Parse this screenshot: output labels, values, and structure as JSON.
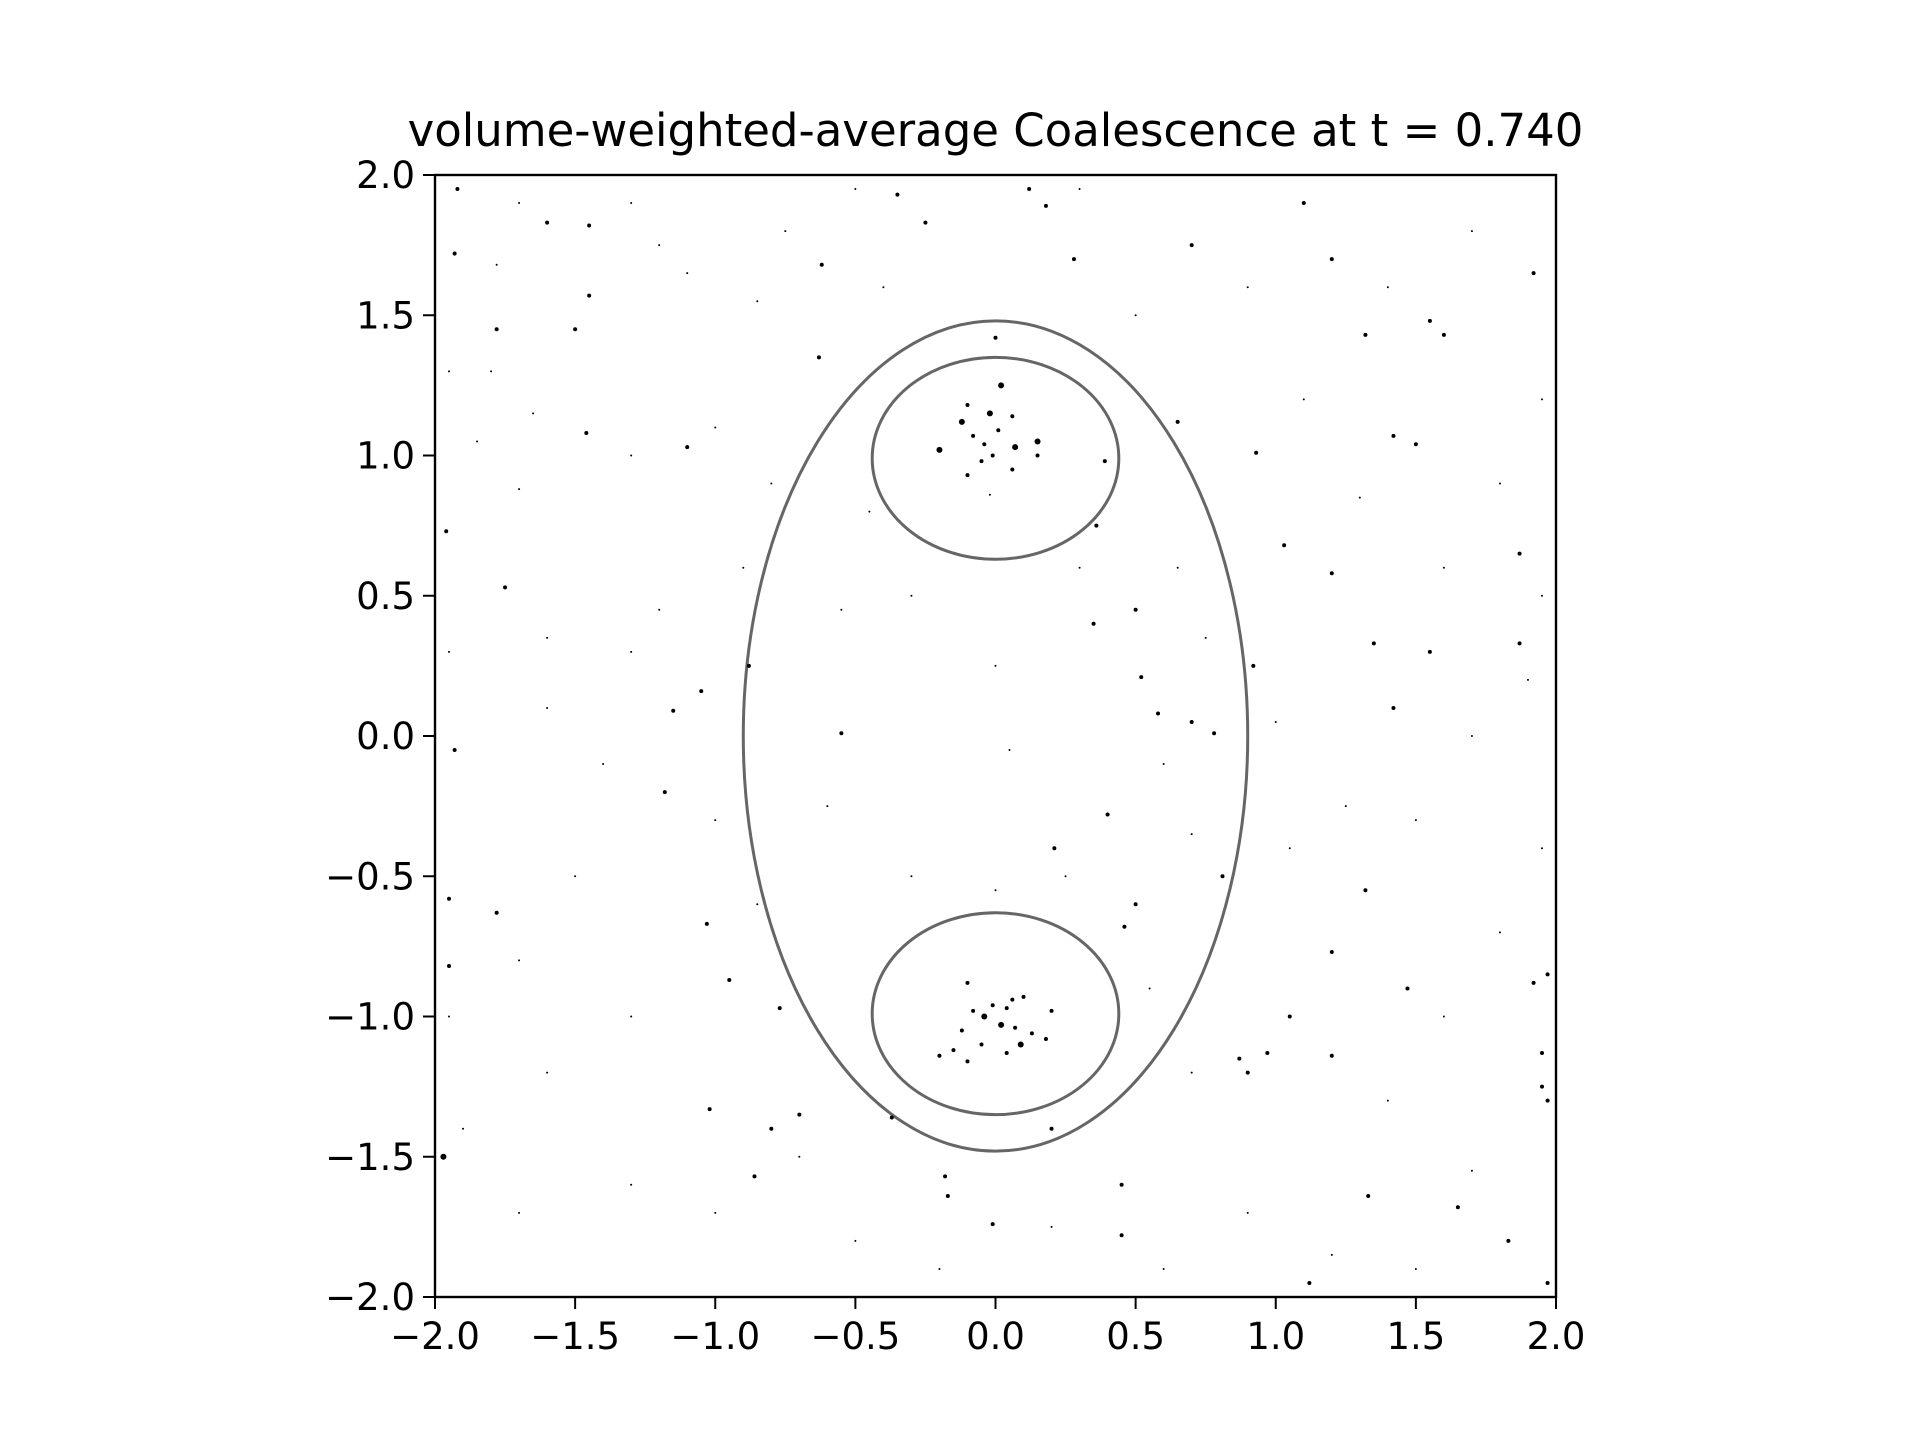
{
  "chart_data": {
    "type": "scatter",
    "title": "volume-weighted-average Coalescence at t = 0.740",
    "xlabel": "",
    "ylabel": "",
    "xlim": [
      -2.0,
      2.0
    ],
    "ylim": [
      -2.0,
      2.0
    ],
    "grid": false,
    "x_ticks": [
      -2.0,
      -1.5,
      -1.0,
      -0.5,
      0.0,
      0.5,
      1.0,
      1.5,
      2.0
    ],
    "y_ticks": [
      -2.0,
      -1.5,
      -1.0,
      -0.5,
      0.0,
      0.5,
      1.0,
      1.5,
      2.0
    ],
    "x_tick_labels": [
      "−2.0",
      "−1.5",
      "−1.0",
      "−0.5",
      "0.0",
      "0.5",
      "1.0",
      "1.5",
      "2.0"
    ],
    "y_tick_labels": [
      "−2.0",
      "−1.5",
      "−1.0",
      "−0.5",
      "0.0",
      "0.5",
      "1.0",
      "1.5",
      "2.0"
    ],
    "outline_color": "#666666",
    "point_color": "#000000",
    "contours": [
      {
        "shape": "ellipse",
        "center": [
          0.0,
          0.0
        ],
        "rx": 0.9,
        "ry": 1.48
      },
      {
        "shape": "ellipse",
        "center": [
          0.0,
          0.99
        ],
        "rx": 0.44,
        "ry": 0.36
      },
      {
        "shape": "ellipse",
        "center": [
          0.0,
          -0.99
        ],
        "rx": 0.44,
        "ry": 0.36
      }
    ],
    "points": [
      [
        -1.92,
        1.95,
        2
      ],
      [
        -1.6,
        1.83,
        2
      ],
      [
        -1.45,
        1.82,
        2
      ],
      [
        -1.93,
        1.72,
        2
      ],
      [
        -1.78,
        1.68,
        1
      ],
      [
        -1.45,
        1.57,
        2
      ],
      [
        -1.5,
        1.45,
        2
      ],
      [
        -1.78,
        1.45,
        2
      ],
      [
        -1.2,
        1.75,
        1
      ],
      [
        -1.1,
        1.65,
        1
      ],
      [
        -0.85,
        1.55,
        1
      ],
      [
        -0.62,
        1.68,
        2
      ],
      [
        -0.63,
        1.35,
        2
      ],
      [
        -1.46,
        1.08,
        2
      ],
      [
        -1.1,
        1.03,
        2
      ],
      [
        -1.85,
        1.05,
        1
      ],
      [
        -1.7,
        0.88,
        1
      ],
      [
        -1.96,
        0.73,
        2
      ],
      [
        -1.75,
        0.53,
        2
      ],
      [
        -1.6,
        0.35,
        1
      ],
      [
        -1.2,
        0.45,
        1
      ],
      [
        -1.05,
        0.16,
        2
      ],
      [
        -1.15,
        0.09,
        2
      ],
      [
        -1.93,
        -0.05,
        2
      ],
      [
        -1.18,
        -0.2,
        2
      ],
      [
        -0.55,
        0.01,
        2
      ],
      [
        -0.88,
        0.25,
        2
      ],
      [
        -1.95,
        -0.58,
        2
      ],
      [
        -1.78,
        -0.63,
        2
      ],
      [
        -1.03,
        -0.67,
        2
      ],
      [
        -0.95,
        -0.87,
        2
      ],
      [
        -0.77,
        -0.97,
        2
      ],
      [
        -1.95,
        -0.82,
        2
      ],
      [
        -1.97,
        -1.5,
        3
      ],
      [
        -1.02,
        -1.33,
        2
      ],
      [
        -0.8,
        -1.4,
        2
      ],
      [
        -0.7,
        -1.35,
        2
      ],
      [
        -0.37,
        -1.36,
        2
      ],
      [
        -0.86,
        -1.57,
        2
      ],
      [
        -0.18,
        -1.57,
        2
      ],
      [
        -0.17,
        -1.64,
        2
      ],
      [
        -0.01,
        -1.74,
        2
      ],
      [
        0.45,
        -1.6,
        2
      ],
      [
        0.45,
        -1.78,
        2
      ],
      [
        0.2,
        -1.4,
        2
      ],
      [
        0.87,
        -1.15,
        2
      ],
      [
        0.9,
        -1.2,
        2
      ],
      [
        0.97,
        -1.13,
        2
      ],
      [
        1.05,
        -1.0,
        2
      ],
      [
        1.2,
        -0.77,
        2
      ],
      [
        1.2,
        -1.14,
        2
      ],
      [
        1.33,
        -1.64,
        2
      ],
      [
        1.47,
        -0.9,
        2
      ],
      [
        1.32,
        -0.55,
        2
      ],
      [
        1.12,
        -1.95,
        2
      ],
      [
        1.65,
        -1.68,
        2
      ],
      [
        1.83,
        -1.8,
        2
      ],
      [
        1.97,
        -1.95,
        2
      ],
      [
        1.92,
        -0.88,
        2
      ],
      [
        1.97,
        -0.85,
        2
      ],
      [
        1.97,
        -1.3,
        2
      ],
      [
        1.95,
        -1.25,
        2
      ],
      [
        1.95,
        -1.13,
        2
      ],
      [
        1.92,
        1.65,
        2
      ],
      [
        1.87,
        0.33,
        2
      ],
      [
        1.87,
        0.65,
        2
      ],
      [
        1.55,
        0.3,
        2
      ],
      [
        1.35,
        0.33,
        2
      ],
      [
        1.2,
        0.58,
        2
      ],
      [
        1.42,
        0.1,
        2
      ],
      [
        1.1,
        1.9,
        2
      ],
      [
        1.2,
        1.7,
        2
      ],
      [
        1.32,
        1.43,
        2
      ],
      [
        1.5,
        1.04,
        2
      ],
      [
        1.42,
        1.07,
        2
      ],
      [
        1.55,
        1.48,
        2
      ],
      [
        1.6,
        1.43,
        2
      ],
      [
        1.03,
        0.68,
        2
      ],
      [
        0.93,
        1.01,
        2
      ],
      [
        0.65,
        1.12,
        2
      ],
      [
        0.39,
        0.98,
        2
      ],
      [
        0.36,
        0.75,
        2
      ],
      [
        0.35,
        0.4,
        2
      ],
      [
        0.5,
        0.45,
        2
      ],
      [
        0.52,
        0.21,
        2
      ],
      [
        0.58,
        0.08,
        2
      ],
      [
        0.7,
        0.05,
        2
      ],
      [
        0.78,
        0.01,
        2
      ],
      [
        0.4,
        -0.28,
        2
      ],
      [
        0.21,
        -0.4,
        2
      ],
      [
        0.92,
        0.25,
        2
      ],
      [
        0.18,
        1.89,
        2
      ],
      [
        -0.25,
        1.83,
        2
      ],
      [
        -0.35,
        1.93,
        2
      ],
      [
        0.12,
        1.95,
        2
      ],
      [
        0.0,
        1.42,
        2
      ],
      [
        0.28,
        1.7,
        2
      ],
      [
        0.7,
        1.75,
        2
      ],
      [
        0.81,
        -0.5,
        2
      ],
      [
        0.5,
        -0.6,
        2
      ],
      [
        0.46,
        -0.68,
        2
      ],
      [
        -0.2,
        1.02,
        3
      ],
      [
        -0.12,
        1.12,
        3
      ],
      [
        -0.02,
        1.15,
        3
      ],
      [
        0.02,
        1.25,
        3
      ],
      [
        0.06,
        1.14,
        2
      ],
      [
        0.15,
        1.05,
        3
      ],
      [
        0.07,
        1.03,
        3
      ],
      [
        -0.04,
        1.04,
        2
      ],
      [
        -0.08,
        1.07,
        2
      ],
      [
        0.01,
        1.09,
        2
      ],
      [
        -0.01,
        1.0,
        2
      ],
      [
        -0.1,
        1.18,
        2
      ],
      [
        0.15,
        1.0,
        2
      ],
      [
        -0.05,
        0.98,
        2
      ],
      [
        -0.1,
        0.93,
        2
      ],
      [
        0.06,
        0.95,
        2
      ],
      [
        -0.02,
        0.86,
        1
      ],
      [
        -0.04,
        -1.0,
        3
      ],
      [
        -0.01,
        -0.96,
        2
      ],
      [
        0.04,
        -0.97,
        2
      ],
      [
        0.1,
        -0.93,
        2
      ],
      [
        0.09,
        -1.1,
        3
      ],
      [
        0.18,
        -1.08,
        2
      ],
      [
        -0.12,
        -1.05,
        2
      ],
      [
        -0.08,
        -0.98,
        2
      ],
      [
        0.02,
        -1.03,
        3
      ],
      [
        0.07,
        -1.04,
        2
      ],
      [
        0.13,
        -1.06,
        2
      ],
      [
        -0.05,
        -1.1,
        2
      ],
      [
        -0.2,
        -1.14,
        2
      ],
      [
        -0.15,
        -1.12,
        2
      ],
      [
        -0.1,
        -1.16,
        2
      ],
      [
        0.04,
        -1.13,
        2
      ],
      [
        -0.1,
        -0.88,
        2
      ],
      [
        0.2,
        -0.98,
        2
      ],
      [
        0.06,
        -0.94,
        2
      ],
      [
        -1.8,
        1.3,
        1
      ],
      [
        -1.65,
        1.15,
        1
      ],
      [
        -1.3,
        1.0,
        1
      ],
      [
        -1.0,
        1.1,
        1
      ],
      [
        -0.8,
        0.9,
        1
      ],
      [
        -0.9,
        0.6,
        1
      ],
      [
        -1.3,
        0.3,
        1
      ],
      [
        -1.6,
        0.1,
        1
      ],
      [
        -1.4,
        -0.1,
        1
      ],
      [
        -1.0,
        -0.3,
        1
      ],
      [
        -0.85,
        -0.6,
        1
      ],
      [
        -1.5,
        -0.5,
        1
      ],
      [
        -1.7,
        -0.8,
        1
      ],
      [
        -1.3,
        -1.0,
        1
      ],
      [
        -1.6,
        -1.2,
        1
      ],
      [
        -1.9,
        -1.4,
        1
      ],
      [
        -1.7,
        -1.7,
        1
      ],
      [
        -1.3,
        -1.6,
        1
      ],
      [
        -1.0,
        -1.7,
        1
      ],
      [
        -0.7,
        -1.5,
        1
      ],
      [
        -0.5,
        -1.8,
        1
      ],
      [
        -0.2,
        -1.9,
        1
      ],
      [
        0.2,
        -1.75,
        1
      ],
      [
        0.6,
        -1.9,
        1
      ],
      [
        0.9,
        -1.7,
        1
      ],
      [
        1.2,
        -1.85,
        1
      ],
      [
        1.5,
        -1.9,
        1
      ],
      [
        1.7,
        -1.55,
        1
      ],
      [
        1.4,
        -1.3,
        1
      ],
      [
        1.6,
        -1.0,
        1
      ],
      [
        1.8,
        -0.7,
        1
      ],
      [
        1.5,
        -0.3,
        1
      ],
      [
        1.7,
        0.0,
        1
      ],
      [
        1.9,
        0.2,
        1
      ],
      [
        1.6,
        0.6,
        1
      ],
      [
        1.8,
        0.9,
        1
      ],
      [
        1.3,
        0.85,
        1
      ],
      [
        1.1,
        1.2,
        1
      ],
      [
        1.4,
        1.6,
        1
      ],
      [
        1.7,
        1.8,
        1
      ],
      [
        0.9,
        1.6,
        1
      ],
      [
        0.5,
        1.5,
        1
      ],
      [
        0.3,
        1.95,
        1
      ],
      [
        -0.5,
        1.95,
        1
      ],
      [
        -0.4,
        1.6,
        1
      ],
      [
        -0.75,
        1.8,
        1
      ],
      [
        -1.3,
        1.9,
        1
      ],
      [
        -1.7,
        1.9,
        1
      ],
      [
        0.65,
        0.6,
        1
      ],
      [
        0.75,
        0.35,
        1
      ],
      [
        0.6,
        -0.1,
        1
      ],
      [
        0.7,
        -0.35,
        1
      ],
      [
        0.55,
        -0.9,
        1
      ],
      [
        0.7,
        -1.2,
        1
      ],
      [
        -0.6,
        -0.25,
        1
      ],
      [
        -0.55,
        0.45,
        1
      ],
      [
        -0.45,
        0.8,
        1
      ],
      [
        0.0,
        0.25,
        1
      ],
      [
        0.05,
        -0.05,
        1
      ],
      [
        0.0,
        -0.55,
        1
      ],
      [
        -0.3,
        0.5,
        1
      ],
      [
        0.3,
        0.6,
        1
      ],
      [
        0.25,
        -0.5,
        1
      ],
      [
        -0.3,
        -0.5,
        1
      ],
      [
        1.0,
        0.05,
        1
      ],
      [
        1.25,
        -0.25,
        1
      ],
      [
        1.05,
        -0.4,
        1
      ],
      [
        1.95,
        1.2,
        1
      ],
      [
        1.95,
        -0.4,
        1
      ],
      [
        1.95,
        0.5,
        1
      ],
      [
        -1.95,
        -1.0,
        1
      ],
      [
        -1.95,
        0.3,
        1
      ],
      [
        -1.95,
        1.3,
        1
      ]
    ]
  }
}
